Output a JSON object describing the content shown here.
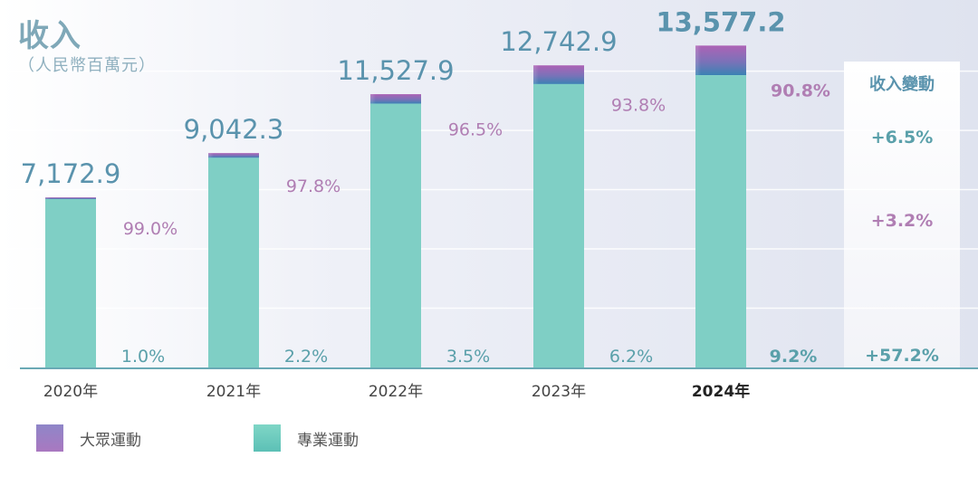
{
  "title": "收入",
  "unit": "（人民幣百萬元）",
  "change_header": "收入變動",
  "colors": {
    "mass_top": "#a865b8",
    "mass_bottom": "#4a7fb8",
    "pro": "#7fcfc5",
    "total_label": "#5a93ad",
    "mass_label": "#b07eb3",
    "pro_label": "#5aa0aa",
    "axis": "#6aa9b5"
  },
  "legend": [
    {
      "name": "大眾運動",
      "icon": "gradient-square"
    },
    {
      "name": "專業運動",
      "icon": "teal-square"
    }
  ],
  "chart_data": {
    "type": "bar",
    "stacked": true,
    "categories": [
      "2020年",
      "2021年",
      "2022年",
      "2023年",
      "2024年"
    ],
    "highlight_category": "2024年",
    "totals": [
      7172.9,
      9042.3,
      11527.9,
      12742.9,
      13577.2
    ],
    "total_labels": [
      "7,172.9",
      "9,042.3",
      "11,527.9",
      "12,742.9",
      "13,577.2"
    ],
    "series": [
      {
        "name": "大眾運動",
        "share_labels": [
          "99.0%",
          "97.8%",
          "96.5%",
          "93.8%",
          "90.8%"
        ],
        "share": [
          99.0,
          97.8,
          96.5,
          93.8,
          90.8
        ]
      },
      {
        "name": "專業運動",
        "share_labels": [
          "1.0%",
          "2.2%",
          "3.5%",
          "6.2%",
          "9.2%"
        ],
        "share": [
          1.0,
          2.2,
          3.5,
          6.2,
          9.2
        ]
      }
    ],
    "changes": [
      {
        "label": "+6.5%",
        "series": "total"
      },
      {
        "label": "+3.2%",
        "series": "大眾運動"
      },
      {
        "label": "+57.2%",
        "series": "專業運動"
      }
    ],
    "ylim": [
      0,
      15500
    ],
    "grid": true
  }
}
